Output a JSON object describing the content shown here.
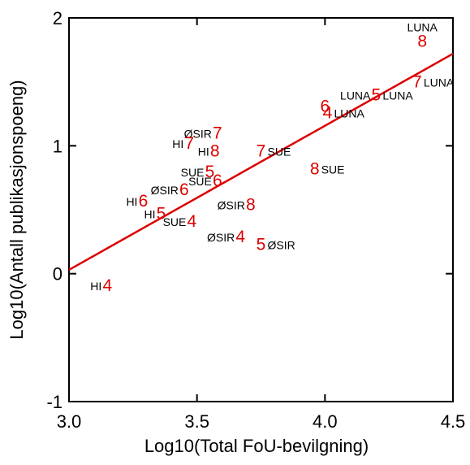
{
  "chart_data": {
    "type": "scatter",
    "title": "",
    "xlabel": "Log10(Total FoU-bevilgning)",
    "ylabel": "Log10(Antall publikasjonspoeng)",
    "xlim": [
      3.0,
      4.5
    ],
    "ylim": [
      -1,
      2
    ],
    "xticks": [
      3.0,
      3.5,
      4.0,
      4.5
    ],
    "xtick_labels": [
      "3.0",
      "3.5",
      "4.0",
      "4.5"
    ],
    "yticks": [
      -1,
      0,
      1,
      2
    ],
    "ytick_labels": [
      "-1",
      "0",
      "1",
      "2"
    ],
    "grid": false,
    "marker_color": "#dd0000",
    "line_color": "#dd0000",
    "points": [
      {
        "label": "LUNA",
        "marker": "8",
        "x": 4.38,
        "y": 1.82,
        "name_pos": "above"
      },
      {
        "label": "LUNA",
        "marker": "7",
        "x": 4.36,
        "y": 1.5,
        "name_pos": "right"
      },
      {
        "label": "LUNA",
        "marker": "5",
        "x": 4.2,
        "y": 1.4,
        "name_pos": "both"
      },
      {
        "label": "LUNA",
        "marker": "6",
        "x": 4.0,
        "y": 1.31,
        "name_pos": "none"
      },
      {
        "label": "LUNA",
        "marker": "4",
        "x": 4.01,
        "y": 1.26,
        "name_pos": "right"
      },
      {
        "label": "ØSIR",
        "marker": "7",
        "x": 3.58,
        "y": 1.1,
        "name_pos": "left"
      },
      {
        "label": "HI",
        "marker": "7",
        "x": 3.47,
        "y": 1.02,
        "name_pos": "left"
      },
      {
        "label": "HI",
        "marker": "8",
        "x": 3.57,
        "y": 0.96,
        "name_pos": "left"
      },
      {
        "label": "SUE",
        "marker": "7",
        "x": 3.75,
        "y": 0.96,
        "name_pos": "right"
      },
      {
        "label": "SUE",
        "marker": "8",
        "x": 3.96,
        "y": 0.82,
        "name_pos": "right"
      },
      {
        "label": "SUE",
        "marker": "5",
        "x": 3.55,
        "y": 0.8,
        "name_pos": "left"
      },
      {
        "label": "SUE",
        "marker": "6",
        "x": 3.58,
        "y": 0.73,
        "name_pos": "left"
      },
      {
        "label": "ØSIR",
        "marker": "6",
        "x": 3.45,
        "y": 0.66,
        "name_pos": "left"
      },
      {
        "label": "HI",
        "marker": "6",
        "x": 3.29,
        "y": 0.57,
        "name_pos": "left"
      },
      {
        "label": "ØSIR",
        "marker": "8",
        "x": 3.71,
        "y": 0.54,
        "name_pos": "left"
      },
      {
        "label": "HI",
        "marker": "5",
        "x": 3.36,
        "y": 0.47,
        "name_pos": "left"
      },
      {
        "label": "SUE",
        "marker": "4",
        "x": 3.48,
        "y": 0.41,
        "name_pos": "left"
      },
      {
        "label": "ØSIR",
        "marker": "4",
        "x": 3.67,
        "y": 0.29,
        "name_pos": "left"
      },
      {
        "label": "ØSIR",
        "marker": "5",
        "x": 3.75,
        "y": 0.23,
        "name_pos": "right"
      },
      {
        "label": "HI",
        "marker": "4",
        "x": 3.15,
        "y": -0.09,
        "name_pos": "left"
      }
    ],
    "fit_line": {
      "x": [
        3.0,
        4.5
      ],
      "y": [
        0.03,
        1.72
      ]
    }
  }
}
